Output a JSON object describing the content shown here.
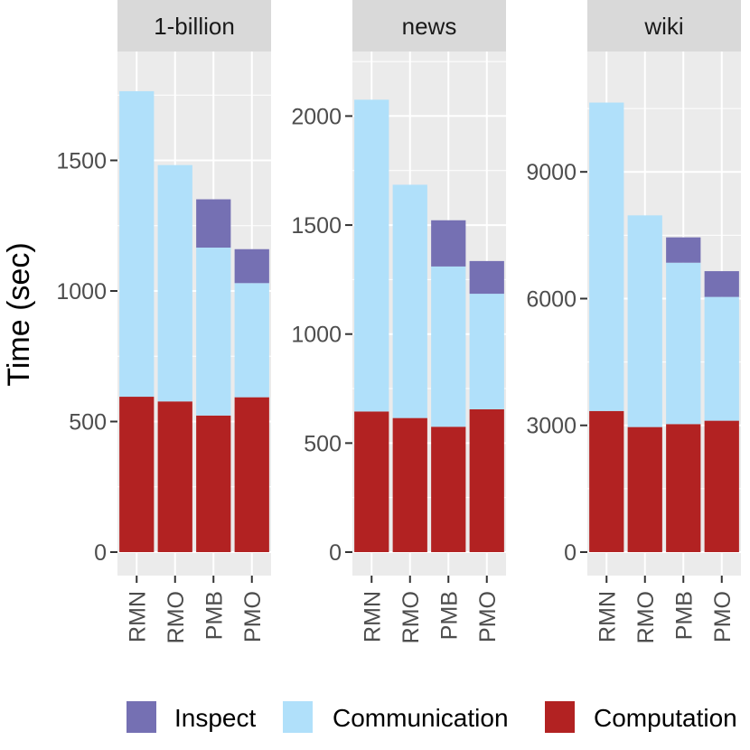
{
  "chart_data": {
    "type": "bar",
    "stacked": true,
    "ylabel": "Time (sec)",
    "xlabel": "",
    "legend_position": "bottom",
    "grid": true,
    "categories": [
      "RMN",
      "RMO",
      "PMB",
      "PMO"
    ],
    "series_order_bottom_to_top": [
      "Computation",
      "Communication",
      "Inspect"
    ],
    "legend": [
      {
        "name": "Inspect",
        "color": "#7570b3"
      },
      {
        "name": "Communication",
        "color": "#b0e0fa"
      },
      {
        "name": "Computation",
        "color": "#b22222"
      }
    ],
    "panels": [
      {
        "title": "1-billion",
        "ylim": [
          0,
          1820
        ],
        "yticks": [
          0,
          500,
          1000,
          1500
        ],
        "series": [
          {
            "name": "Computation",
            "values": [
              595,
              577,
              523,
              593
            ]
          },
          {
            "name": "Communication",
            "values": [
              1170,
              905,
              643,
              437
            ]
          },
          {
            "name": "Inspect",
            "values": [
              0,
              0,
              185,
              130
            ]
          }
        ]
      },
      {
        "title": "news",
        "ylim": [
          0,
          2180
        ],
        "yticks": [
          0,
          500,
          1000,
          1500,
          2000
        ],
        "series": [
          {
            "name": "Computation",
            "values": [
              645,
              615,
              575,
              655
            ]
          },
          {
            "name": "Communication",
            "values": [
              1430,
              1070,
              735,
              530
            ]
          },
          {
            "name": "Inspect",
            "values": [
              0,
              0,
              212,
              150
            ]
          }
        ]
      },
      {
        "title": "wiki",
        "ylim": [
          0,
          11250
        ],
        "yticks": [
          0,
          3000,
          6000,
          9000
        ],
        "series": [
          {
            "name": "Computation",
            "values": [
              3340,
              2960,
              3030,
              3110
            ]
          },
          {
            "name": "Communication",
            "values": [
              7300,
              5010,
              3820,
              2930
            ]
          },
          {
            "name": "Inspect",
            "values": [
              0,
              0,
              600,
              610
            ]
          }
        ]
      }
    ]
  }
}
